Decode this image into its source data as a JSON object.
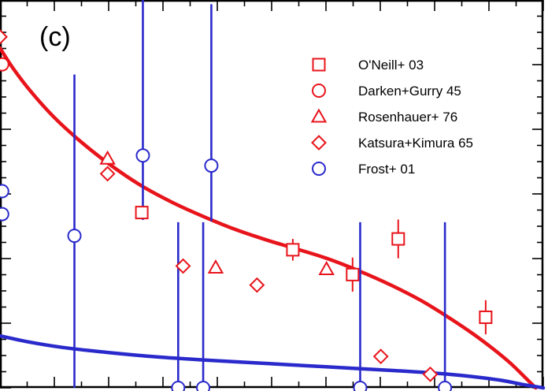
{
  "chart_data": {
    "type": "scatter",
    "panel_label": "(c)",
    "title": "",
    "xlabel": "",
    "ylabel": "",
    "xlim": [
      0,
      100
    ],
    "ylim": [
      0,
      100
    ],
    "tick_labels_shown": false,
    "grid": false,
    "legend_position": "top-right",
    "colors": {
      "red": "#e8141b",
      "blue": "#2a2acc",
      "axis": "#000000"
    },
    "series": [
      {
        "name": "O'Neill+ 03",
        "marker": "square",
        "color": "#e8141b",
        "points": [
          {
            "x": 26.1,
            "y": 45.2
          },
          {
            "x": 53.9,
            "y": 35.6,
            "err": 2.8
          },
          {
            "x": 64.9,
            "y": 29.2,
            "err": 4.4
          },
          {
            "x": 73.3,
            "y": 38.4,
            "err": 5.0
          },
          {
            "x": 89.4,
            "y": 18.2,
            "err": 4.4
          }
        ]
      },
      {
        "name": "Darken+Gurry 45",
        "marker": "circle",
        "color": "#e8141b",
        "points": [
          {
            "x": 0.4,
            "y": 83.4
          }
        ]
      },
      {
        "name": "Rosenhauer+ 76",
        "marker": "triangle",
        "color": "#e8141b",
        "points": [
          {
            "x": 19.8,
            "y": 59.1
          },
          {
            "x": 39.7,
            "y": 31.0
          },
          {
            "x": 60.1,
            "y": 30.6
          }
        ]
      },
      {
        "name": "Katsura+Kimura 65",
        "marker": "diamond",
        "color": "#e8141b",
        "points": [
          {
            "x": 0.0,
            "y": 90.5
          },
          {
            "x": 19.8,
            "y": 55.2
          },
          {
            "x": 33.7,
            "y": 31.4
          },
          {
            "x": 47.3,
            "y": 26.5
          },
          {
            "x": 70.1,
            "y": 8.1
          },
          {
            "x": 79.2,
            "y": 3.5
          }
        ]
      },
      {
        "name": "Frost+ 01",
        "marker": "circle",
        "color": "#2a2acc",
        "points": [
          {
            "x": 0.4,
            "y": 50.7
          },
          {
            "x": 0.4,
            "y": 44.8
          },
          {
            "x": 13.7,
            "y": 39.2,
            "yerr_low": 39.2,
            "yerr_high": 41.6
          },
          {
            "x": 26.3,
            "y": 59.9,
            "yerr_low": 16.6,
            "yerr_high": 40.1
          },
          {
            "x": 38.9,
            "y": 57.3,
            "yerr_low": 14.3,
            "yerr_high": 41.6
          },
          {
            "x": 32.8,
            "y": 0.0,
            "yerr_low": 0.0,
            "yerr_high": 42.7
          },
          {
            "x": 37.4,
            "y": 0.0,
            "yerr_low": 0.0,
            "yerr_high": 42.7
          },
          {
            "x": 66.3,
            "y": 0.0,
            "yerr_low": 0.0,
            "yerr_high": 42.7
          },
          {
            "x": 81.9,
            "y": 0.0,
            "yerr_low": 0.0,
            "yerr_high": 42.7
          }
        ]
      }
    ],
    "curves": [
      {
        "color": "#e8141b",
        "points": [
          [
            0.0,
            87.6
          ],
          [
            2.5,
            82.2
          ],
          [
            5.8,
            76.2
          ],
          [
            10.0,
            69.7
          ],
          [
            14.6,
            63.8
          ],
          [
            20.0,
            57.8
          ],
          [
            25.8,
            52.3
          ],
          [
            31.6,
            47.9
          ],
          [
            37.4,
            44.2
          ],
          [
            43.2,
            40.9
          ],
          [
            48.9,
            38.2
          ],
          [
            54.6,
            35.8
          ],
          [
            60.3,
            33.3
          ],
          [
            66.0,
            30.2
          ],
          [
            71.8,
            26.6
          ],
          [
            77.4,
            22.6
          ],
          [
            82.3,
            18.4
          ],
          [
            87.0,
            14.0
          ],
          [
            90.9,
            9.9
          ],
          [
            94.0,
            6.3
          ],
          [
            96.5,
            2.9
          ],
          [
            98.6,
            0.0
          ]
        ]
      },
      {
        "color": "#2a2acc",
        "points": [
          [
            0.0,
            13.4
          ],
          [
            5.0,
            11.9
          ],
          [
            11.6,
            10.4
          ],
          [
            20.0,
            9.1
          ],
          [
            28.7,
            8.0
          ],
          [
            37.4,
            7.2
          ],
          [
            48.9,
            6.3
          ],
          [
            60.3,
            5.4
          ],
          [
            72.0,
            4.5
          ],
          [
            82.6,
            3.5
          ],
          [
            91.5,
            2.1
          ],
          [
            96.1,
            0.9
          ],
          [
            100.0,
            0.0
          ]
        ]
      }
    ]
  }
}
